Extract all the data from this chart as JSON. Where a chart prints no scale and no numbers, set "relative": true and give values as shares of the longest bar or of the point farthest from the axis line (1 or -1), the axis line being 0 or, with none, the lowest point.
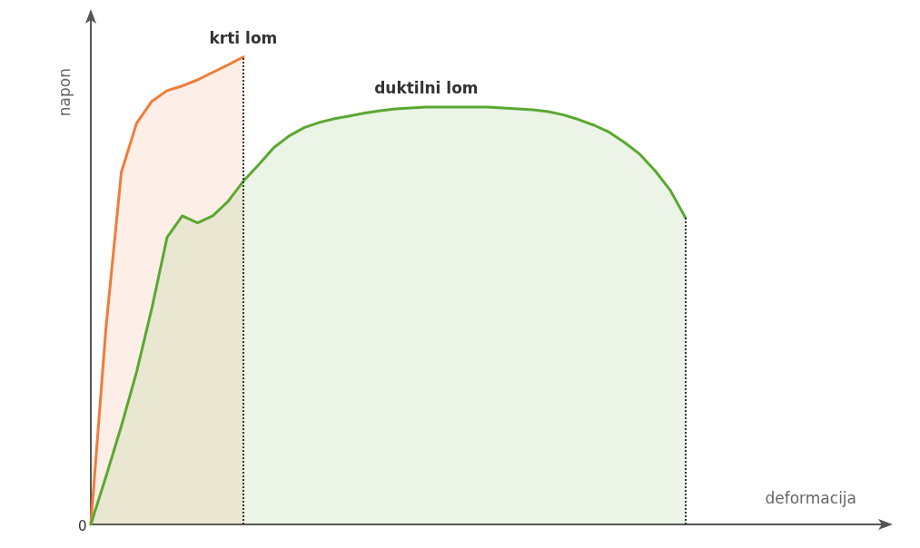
{
  "chart_data": {
    "type": "area",
    "relative": true,
    "xlabel": "deformacija",
    "ylabel": "napon",
    "grid": false,
    "marker": "none",
    "annotations": [
      "0"
    ],
    "categories": [
      null,
      null,
      null,
      null,
      null,
      null,
      null,
      null,
      null,
      null,
      null,
      null,
      null,
      null,
      null,
      null,
      null,
      null,
      null,
      null,
      null,
      null,
      null,
      null,
      null,
      null,
      null,
      null,
      null,
      null,
      null,
      null,
      null,
      null,
      null,
      null,
      null,
      null,
      null,
      null,
      null,
      null,
      null,
      null,
      null,
      null,
      null,
      null,
      null,
      null,
      null,
      null,
      null
    ],
    "series": [
      {
        "name": "krti lom",
        "color": "#f07c3a",
        "values": [
          0,
          0.423,
          0.753,
          0.858,
          0.905,
          0.928,
          0.938,
          0.951,
          0.967,
          0.983,
          1,
          null,
          null,
          null,
          null,
          null,
          null,
          null,
          null,
          null,
          null,
          null,
          null,
          null,
          null,
          null,
          null,
          null,
          null,
          null,
          null,
          null,
          null,
          null,
          null,
          null,
          null,
          null,
          null,
          null,
          null,
          null,
          null,
          null,
          null,
          null,
          null,
          null,
          null,
          null,
          null,
          null,
          null
        ]
      },
      {
        "name": "duktilni lom",
        "color": "#5aa832",
        "values": [
          0,
          0.103,
          0.21,
          0.326,
          0.462,
          0.614,
          0.66,
          0.645,
          0.66,
          0.691,
          0.734,
          0.769,
          0.806,
          0.831,
          0.849,
          0.86,
          0.868,
          0.874,
          0.88,
          0.885,
          0.889,
          0.891,
          0.893,
          0.893,
          0.893,
          0.893,
          0.893,
          0.891,
          0.889,
          0.887,
          0.883,
          0.876,
          0.866,
          0.854,
          0.839,
          0.817,
          0.792,
          0.757,
          0.715,
          0.656,
          null,
          null,
          null,
          null,
          null,
          null,
          null,
          null,
          null,
          null,
          null,
          null,
          null
        ]
      }
    ]
  }
}
